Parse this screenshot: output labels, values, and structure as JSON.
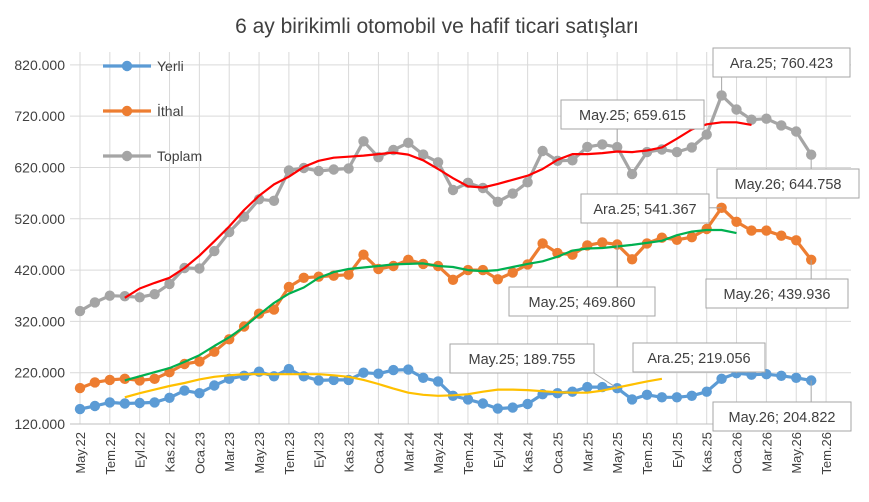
{
  "chart_data": {
    "type": "line",
    "title": "6 ay birikimli otomobil ve hafif ticari satışları",
    "x_tick_labels": [
      "May.22",
      "Tem.22",
      "Eyl.22",
      "Kas.22",
      "Oca.23",
      "Mar.23",
      "May.23",
      "Tem.23",
      "Eyl.23",
      "Kas.23",
      "Oca.24",
      "Mar.24",
      "May.24",
      "Tem.24",
      "Eyl.24",
      "Kas.24",
      "Oca.25",
      "Mar.25",
      "May.25",
      "Tem.25",
      "Eyl.25",
      "Kas.25",
      "Oca.26",
      "Mar.26",
      "May.26",
      "Tem.26"
    ],
    "y_tick_labels": [
      "120.000",
      "220.000",
      "320.000",
      "420.000",
      "520.000",
      "620.000",
      "720.000",
      "820.000"
    ],
    "ylim": [
      120000,
      845000
    ],
    "grid": true,
    "legend_position": "top-left",
    "series": [
      {
        "name": "Yerli",
        "color": "#5B9BD5",
        "marker": true,
        "values": [
          149000,
          155000,
          162000,
          160000,
          161000,
          162000,
          171000,
          185000,
          180000,
          195000,
          208000,
          214000,
          222000,
          213000,
          227000,
          213000,
          205000,
          206000,
          206000,
          220000,
          218000,
          225000,
          226000,
          210000,
          203000,
          175000,
          168000,
          160000,
          150000,
          152000,
          159000,
          178000,
          180000,
          183000,
          192000,
          192000,
          189755,
          168000,
          177000,
          172000,
          172000,
          175000,
          183000,
          208000,
          219056,
          216000,
          217000,
          214000,
          210000,
          204822
        ]
      },
      {
        "name": "İthal",
        "color": "#ED7D31",
        "marker": true,
        "values": [
          190000,
          201000,
          206000,
          208000,
          205000,
          208000,
          221000,
          237000,
          242000,
          261000,
          285000,
          310000,
          335000,
          343000,
          387000,
          405000,
          407000,
          409000,
          411000,
          450000,
          422000,
          428000,
          440000,
          432000,
          428000,
          401000,
          420000,
          420000,
          402000,
          415000,
          431000,
          472000,
          453000,
          450000,
          468000,
          474000,
          469860,
          441000,
          472000,
          483000,
          479000,
          484000,
          500000,
          541367,
          514000,
          497000,
          497000,
          487000,
          478000,
          439936
        ]
      },
      {
        "name": "Toplam",
        "color": "#A5A5A5",
        "marker": true,
        "values": [
          340000,
          357000,
          370000,
          369000,
          367000,
          373000,
          393000,
          424000,
          423000,
          457000,
          494000,
          524000,
          558000,
          555000,
          614000,
          619000,
          613000,
          616000,
          618000,
          671000,
          640000,
          654000,
          668000,
          645000,
          630000,
          576000,
          590000,
          580000,
          553000,
          569000,
          591000,
          652000,
          633000,
          634000,
          660000,
          665000,
          659615,
          607000,
          650000,
          655000,
          650000,
          659000,
          684000,
          760423,
          733000,
          713000,
          715000,
          702000,
          690000,
          644758
        ]
      },
      {
        "name": "",
        "color": "#FFC000",
        "marker": false,
        "start_index": 3,
        "values": [
          172000,
          180000,
          187000,
          194000,
          200000,
          207000,
          212000,
          215000,
          217000,
          217000,
          217000,
          217000,
          217000,
          217000,
          215000,
          212000,
          206000,
          198000,
          189000,
          181000,
          177000,
          175000,
          176000,
          178000,
          183000,
          187000,
          187000,
          186000,
          184000,
          182000,
          181000,
          181000,
          185000,
          191000,
          197000,
          203000,
          208000
        ]
      },
      {
        "name": "",
        "color": "#00B050",
        "marker": false,
        "start_index": 3,
        "values": [
          205000,
          213000,
          221000,
          229000,
          241000,
          254000,
          272000,
          289000,
          309000,
          333000,
          356000,
          374000,
          386000,
          405000,
          416000,
          422000,
          425000,
          428000,
          431000,
          432000,
          433000,
          428000,
          426000,
          420000,
          418000,
          420000,
          426000,
          432000,
          437000,
          446000,
          458000,
          462000,
          463000,
          466000,
          469000,
          473000,
          477000,
          488000,
          495000,
          498000,
          498000,
          492000
        ]
      },
      {
        "name": "",
        "color": "#FF0000",
        "marker": false,
        "start_index": 3,
        "values": [
          366000,
          384000,
          395000,
          405000,
          424000,
          448000,
          476000,
          505000,
          537000,
          565000,
          587000,
          602000,
          621000,
          633000,
          639000,
          641000,
          643000,
          646000,
          649000,
          645000,
          634000,
          617000,
          599000,
          583000,
          581000,
          588000,
          596000,
          604000,
          617000,
          635000,
          646000,
          646000,
          648000,
          651000,
          650000,
          653000,
          659000,
          676000,
          694000,
          704000,
          708000,
          708000,
          703000
        ]
      }
    ],
    "annotations": [
      {
        "text": "May.25; 659.615"
      },
      {
        "text": "Ara.25; 760.423"
      },
      {
        "text": "May.26; 644.758"
      },
      {
        "text": "Ara.25; 541.367"
      },
      {
        "text": "May.25; 469.860"
      },
      {
        "text": "May.26; 439.936"
      },
      {
        "text": "May.25; 189.755"
      },
      {
        "text": "Ara.25; 219.056"
      },
      {
        "text": "May.26; 204.822"
      }
    ]
  }
}
